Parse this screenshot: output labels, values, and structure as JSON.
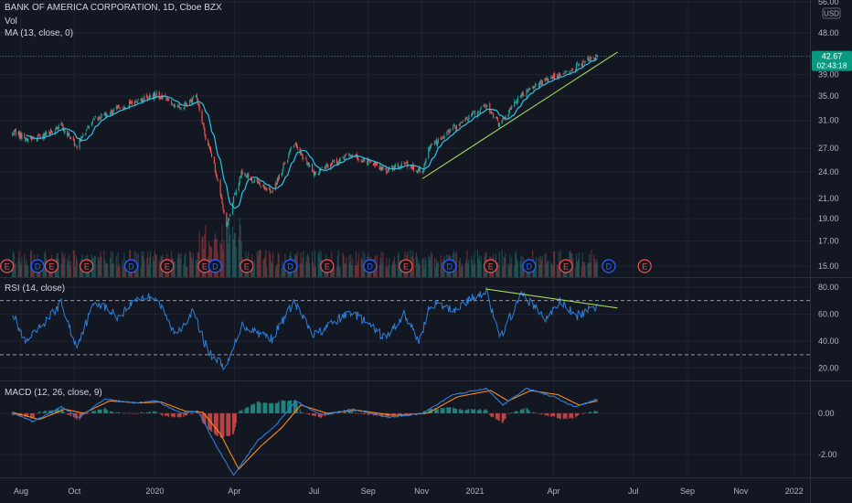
{
  "header": {
    "title": "BANK OF AMERICA CORPORATION, 1D, Cboe BZX",
    "vol_label": "Vol",
    "ma_label": "MA (13, close, 0)",
    "currency": "USD"
  },
  "colors": {
    "background": "#131722",
    "grid": "#1f2430",
    "up": "#26a69a",
    "down": "#ef5350",
    "ma": "#2ec4e6",
    "rsi": "#2f7ed8",
    "macd": "#2f7ed8",
    "signal": "#ff8c1a",
    "trend": "#a5d65a",
    "badge_price": "#089981"
  },
  "chart_data": [
    {
      "type": "candlestick",
      "panel": "price",
      "y_ticks": [
        15.0,
        17.0,
        19.0,
        21.0,
        24.0,
        27.0,
        31.0,
        35.0,
        39.0,
        48.0,
        56.0
      ],
      "y_tick_labels": [
        "15.00",
        "17.00",
        "19.00",
        "21.00",
        "24.00",
        "27.00",
        "31.00",
        "35.00",
        "39.00",
        "48.00",
        "56.00"
      ],
      "ylim": [
        14.2,
        56.0
      ],
      "scale": "log",
      "last_price": "42.67",
      "countdown": "02:43:18",
      "x_ticks": [
        "Aug",
        "Oct",
        "2020",
        "Apr",
        "Jul",
        "Sep",
        "Nov",
        "2021",
        "Apr",
        "Jul",
        "Sep",
        "Nov",
        "2022"
      ],
      "close_keypoints": [
        {
          "date": "2019-07-22",
          "value": 29.4
        },
        {
          "date": "2019-08-06",
          "value": 28.3
        },
        {
          "date": "2019-08-26",
          "value": 28.6
        },
        {
          "date": "2019-09-16",
          "value": 30.2
        },
        {
          "date": "2019-10-03",
          "value": 27.2
        },
        {
          "date": "2019-10-25",
          "value": 31.3
        },
        {
          "date": "2019-12-02",
          "value": 33.6
        },
        {
          "date": "2020-01-02",
          "value": 35.3
        },
        {
          "date": "2020-01-31",
          "value": 33.1
        },
        {
          "date": "2020-02-18",
          "value": 34.8
        },
        {
          "date": "2020-02-28",
          "value": 28.5
        },
        {
          "date": "2020-03-10",
          "value": 24.3
        },
        {
          "date": "2020-03-23",
          "value": 18.3
        },
        {
          "date": "2020-04-09",
          "value": 24.0
        },
        {
          "date": "2020-05-14",
          "value": 21.5
        },
        {
          "date": "2020-06-08",
          "value": 27.6
        },
        {
          "date": "2020-06-30",
          "value": 23.8
        },
        {
          "date": "2020-08-13",
          "value": 26.2
        },
        {
          "date": "2020-09-21",
          "value": 24.1
        },
        {
          "date": "2020-10-12",
          "value": 25.1
        },
        {
          "date": "2020-11-02",
          "value": 24.0
        },
        {
          "date": "2020-11-09",
          "value": 26.9
        },
        {
          "date": "2020-12-07",
          "value": 29.8
        },
        {
          "date": "2021-01-14",
          "value": 33.4
        },
        {
          "date": "2021-01-29",
          "value": 30.3
        },
        {
          "date": "2021-02-24",
          "value": 35.4
        },
        {
          "date": "2021-03-29",
          "value": 38.4
        },
        {
          "date": "2021-04-20",
          "value": 39.7
        },
        {
          "date": "2021-05-10",
          "value": 41.9
        },
        {
          "date": "2021-05-21",
          "value": 42.67
        }
      ],
      "events": [
        {
          "date": "2019-07-16",
          "label": "E"
        },
        {
          "date": "2019-08-20",
          "label": "D"
        },
        {
          "date": "2019-09-05",
          "label": "E"
        },
        {
          "date": "2019-10-15",
          "label": "E"
        },
        {
          "date": "2019-12-05",
          "label": "D"
        },
        {
          "date": "2020-01-15",
          "label": "E"
        },
        {
          "date": "2020-02-27",
          "label": "E"
        },
        {
          "date": "2020-03-10",
          "label": "D"
        },
        {
          "date": "2020-04-15",
          "label": "E"
        },
        {
          "date": "2020-06-04",
          "label": "D"
        },
        {
          "date": "2020-07-16",
          "label": "E"
        },
        {
          "date": "2020-09-03",
          "label": "D"
        },
        {
          "date": "2020-10-14",
          "label": "E"
        },
        {
          "date": "2020-12-03",
          "label": "D"
        },
        {
          "date": "2021-01-19",
          "label": "E"
        },
        {
          "date": "2021-03-04",
          "label": "D"
        },
        {
          "date": "2021-04-15",
          "label": "E"
        },
        {
          "date": "2021-06-03",
          "label": "D"
        },
        {
          "date": "2021-07-14",
          "label": "E"
        }
      ],
      "trendline": [
        {
          "date": "2020-11-02",
          "value": 23.2
        },
        {
          "date": "2021-06-13",
          "value": 43.6
        }
      ]
    },
    {
      "type": "line",
      "panel": "rsi",
      "legend": "RSI (14, close)",
      "y_ticks": [
        20,
        40,
        60,
        80
      ],
      "y_tick_labels": [
        "20.00",
        "40.00",
        "60.00",
        "80.00"
      ],
      "ylim": [
        11,
        86
      ],
      "bands": [
        30,
        70
      ],
      "keypoints": [
        {
          "date": "2019-07-22",
          "value": 62
        },
        {
          "date": "2019-08-06",
          "value": 38
        },
        {
          "date": "2019-08-20",
          "value": 48
        },
        {
          "date": "2019-09-16",
          "value": 68
        },
        {
          "date": "2019-10-03",
          "value": 36
        },
        {
          "date": "2019-10-25",
          "value": 70
        },
        {
          "date": "2019-11-20",
          "value": 58
        },
        {
          "date": "2019-12-12",
          "value": 72
        },
        {
          "date": "2020-01-02",
          "value": 73
        },
        {
          "date": "2020-01-24",
          "value": 45
        },
        {
          "date": "2020-02-14",
          "value": 62
        },
        {
          "date": "2020-03-02",
          "value": 32
        },
        {
          "date": "2020-03-23",
          "value": 20
        },
        {
          "date": "2020-04-09",
          "value": 52
        },
        {
          "date": "2020-05-14",
          "value": 42
        },
        {
          "date": "2020-06-08",
          "value": 69
        },
        {
          "date": "2020-06-30",
          "value": 44
        },
        {
          "date": "2020-08-13",
          "value": 62
        },
        {
          "date": "2020-09-21",
          "value": 42
        },
        {
          "date": "2020-10-12",
          "value": 60
        },
        {
          "date": "2020-10-29",
          "value": 40
        },
        {
          "date": "2020-11-12",
          "value": 68
        },
        {
          "date": "2020-12-07",
          "value": 63
        },
        {
          "date": "2021-01-14",
          "value": 78
        },
        {
          "date": "2021-01-29",
          "value": 42
        },
        {
          "date": "2021-02-24",
          "value": 75
        },
        {
          "date": "2021-03-23",
          "value": 56
        },
        {
          "date": "2021-04-09",
          "value": 70
        },
        {
          "date": "2021-04-26",
          "value": 58
        },
        {
          "date": "2021-05-21",
          "value": 66
        }
      ],
      "trendline": [
        {
          "date": "2021-01-14",
          "value": 78.5
        },
        {
          "date": "2021-06-13",
          "value": 64.5
        }
      ]
    },
    {
      "type": "line",
      "panel": "macd",
      "legend": "MACD (12, 26, close, 9)",
      "y_ticks": [
        -2.0,
        0.0
      ],
      "y_tick_labels": [
        "-2.00",
        "0.00"
      ],
      "ylim": [
        -3.1,
        1.5
      ],
      "series": [
        {
          "id": "macd",
          "keypoints": [
            {
              "date": "2019-07-22",
              "value": 0.0
            },
            {
              "date": "2019-08-15",
              "value": -0.4
            },
            {
              "date": "2019-09-16",
              "value": 0.3
            },
            {
              "date": "2019-10-07",
              "value": -0.2
            },
            {
              "date": "2019-11-05",
              "value": 0.7
            },
            {
              "date": "2019-12-10",
              "value": 0.5
            },
            {
              "date": "2020-01-03",
              "value": 0.6
            },
            {
              "date": "2020-01-31",
              "value": 0.0
            },
            {
              "date": "2020-02-20",
              "value": 0.1
            },
            {
              "date": "2020-03-09",
              "value": -1.4
            },
            {
              "date": "2020-03-31",
              "value": -3.0
            },
            {
              "date": "2020-04-28",
              "value": -1.3
            },
            {
              "date": "2020-05-18",
              "value": -0.6
            },
            {
              "date": "2020-06-10",
              "value": 0.6
            },
            {
              "date": "2020-07-10",
              "value": -0.1
            },
            {
              "date": "2020-08-13",
              "value": 0.2
            },
            {
              "date": "2020-09-25",
              "value": -0.2
            },
            {
              "date": "2020-11-02",
              "value": 0.0
            },
            {
              "date": "2020-12-07",
              "value": 0.9
            },
            {
              "date": "2021-01-14",
              "value": 1.2
            },
            {
              "date": "2021-02-02",
              "value": 0.4
            },
            {
              "date": "2021-03-01",
              "value": 1.2
            },
            {
              "date": "2021-04-01",
              "value": 0.8
            },
            {
              "date": "2021-04-26",
              "value": 0.3
            },
            {
              "date": "2021-05-21",
              "value": 0.7
            }
          ]
        },
        {
          "id": "signal",
          "keypoints": [
            {
              "date": "2019-07-22",
              "value": 0.05
            },
            {
              "date": "2019-08-22",
              "value": -0.3
            },
            {
              "date": "2019-09-20",
              "value": 0.2
            },
            {
              "date": "2019-10-12",
              "value": 0.0
            },
            {
              "date": "2019-11-10",
              "value": 0.6
            },
            {
              "date": "2019-12-15",
              "value": 0.5
            },
            {
              "date": "2020-01-08",
              "value": 0.55
            },
            {
              "date": "2020-02-05",
              "value": 0.1
            },
            {
              "date": "2020-02-25",
              "value": 0.05
            },
            {
              "date": "2020-03-16",
              "value": -1.0
            },
            {
              "date": "2020-04-06",
              "value": -2.7
            },
            {
              "date": "2020-05-01",
              "value": -1.6
            },
            {
              "date": "2020-05-25",
              "value": -0.7
            },
            {
              "date": "2020-06-16",
              "value": 0.4
            },
            {
              "date": "2020-07-16",
              "value": 0.0
            },
            {
              "date": "2020-08-19",
              "value": 0.15
            },
            {
              "date": "2020-09-30",
              "value": -0.1
            },
            {
              "date": "2020-11-08",
              "value": 0.0
            },
            {
              "date": "2020-12-12",
              "value": 0.8
            },
            {
              "date": "2021-01-19",
              "value": 1.1
            },
            {
              "date": "2021-02-08",
              "value": 0.6
            },
            {
              "date": "2021-03-06",
              "value": 1.1
            },
            {
              "date": "2021-04-06",
              "value": 0.9
            },
            {
              "date": "2021-04-30",
              "value": 0.4
            },
            {
              "date": "2021-05-21",
              "value": 0.6
            }
          ]
        }
      ]
    }
  ]
}
